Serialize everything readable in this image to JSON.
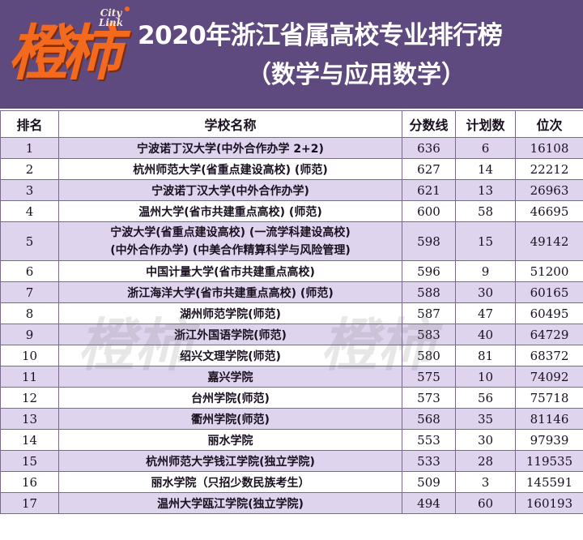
{
  "logo": {
    "main": "橙柿",
    "sub_line1": "City",
    "sub_line2": "Link"
  },
  "title": {
    "line1": "2020年浙江省属高校专业排行榜",
    "line2": "（数学与应用数学）"
  },
  "table": {
    "headers": {
      "rank": "排名",
      "school": "学校名称",
      "score": "分数线",
      "plan": "计划数",
      "position": "位次"
    },
    "rows": [
      {
        "rank": "1",
        "school": "宁波诺丁汉大学(中外合作办学 2+2)",
        "score": "636",
        "plan": "6",
        "position": "16108"
      },
      {
        "rank": "2",
        "school": "杭州师范大学(省重点建设高校) (师范)",
        "score": "627",
        "plan": "14",
        "position": "22212"
      },
      {
        "rank": "3",
        "school": "宁波诺丁汉大学(中外合作办学)",
        "score": "621",
        "plan": "13",
        "position": "26963"
      },
      {
        "rank": "4",
        "school": "温州大学(省市共建重点高校) (师范)",
        "score": "600",
        "plan": "58",
        "position": "46695"
      },
      {
        "rank": "5",
        "school_line1": "宁波大学(省重点建设高校) (一流学科建设高校)",
        "school_line2": "(中外合作办学) (中美合作精算科学与风险管理)",
        "score": "598",
        "plan": "15",
        "position": "49142"
      },
      {
        "rank": "6",
        "school": "中国计量大学(省市共建重点高校)",
        "score": "596",
        "plan": "9",
        "position": "51200"
      },
      {
        "rank": "7",
        "school": "浙江海洋大学(省市共建重点高校) (师范)",
        "score": "588",
        "plan": "30",
        "position": "60165"
      },
      {
        "rank": "8",
        "school": "湖州师范学院(师范)",
        "score": "587",
        "plan": "47",
        "position": "60495"
      },
      {
        "rank": "9",
        "school": "浙江外国语学院(师范)",
        "score": "583",
        "plan": "40",
        "position": "64729"
      },
      {
        "rank": "10",
        "school": "绍兴文理学院(师范)",
        "score": "580",
        "plan": "81",
        "position": "68372"
      },
      {
        "rank": "11",
        "school": "嘉兴学院",
        "score": "575",
        "plan": "10",
        "position": "74092"
      },
      {
        "rank": "12",
        "school": "台州学院(师范)",
        "score": "573",
        "plan": "56",
        "position": "75718"
      },
      {
        "rank": "13",
        "school": "衢州学院(师范)",
        "score": "568",
        "plan": "35",
        "position": "81146"
      },
      {
        "rank": "14",
        "school": "丽水学院",
        "score": "553",
        "plan": "30",
        "position": "97939"
      },
      {
        "rank": "15",
        "school": "杭州师范大学钱江学院(独立学院)",
        "score": "533",
        "plan": "28",
        "position": "119535"
      },
      {
        "rank": "16",
        "school": "丽水学院（只招少数民族考生）",
        "score": "509",
        "plan": "3",
        "position": "145591"
      },
      {
        "rank": "17",
        "school": "温州大学瓯江学院(独立学院)",
        "score": "494",
        "plan": "60",
        "position": "160193"
      }
    ]
  },
  "watermark": {
    "text": "橙柿"
  },
  "colors": {
    "header_bg": "#5f4a80",
    "logo_orange": "#f36a1e",
    "row_stripe": "#ded4ee"
  }
}
